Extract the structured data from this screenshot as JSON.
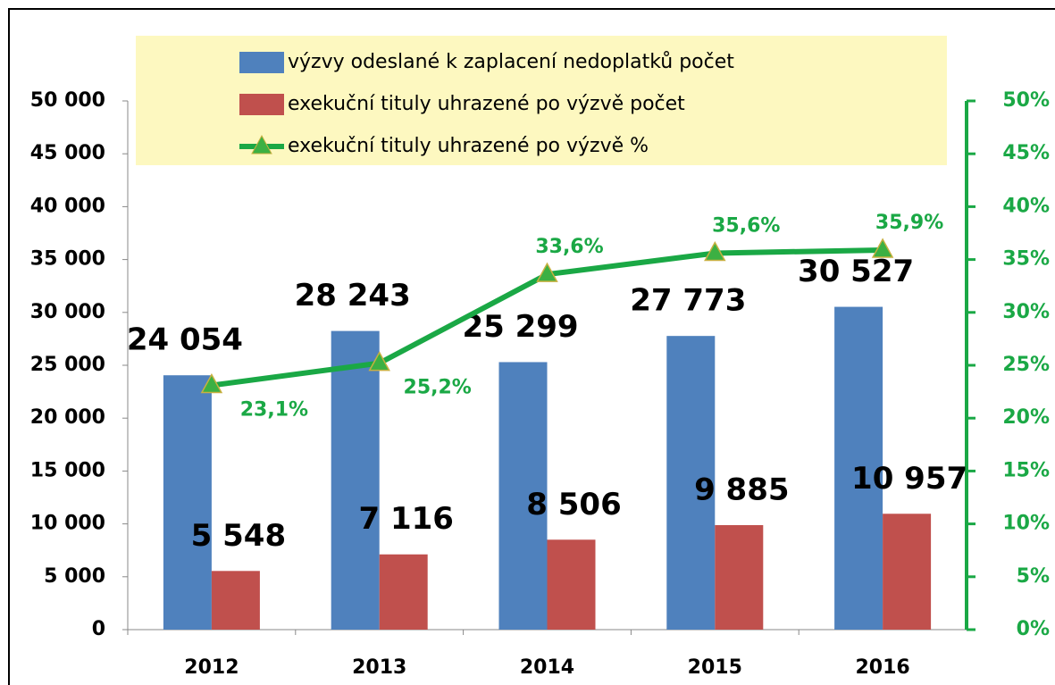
{
  "chart_data": {
    "type": "bar_line",
    "categories": [
      "2012",
      "2013",
      "2014",
      "2015",
      "2016"
    ],
    "series": [
      {
        "name": "výzvy odeslané k zaplacení nedoplatků počet",
        "color": "#4f81bd",
        "type": "bar",
        "values": [
          24054,
          28243,
          25299,
          27773,
          30527
        ],
        "value_labels": [
          "24 054",
          "28 243",
          "25 299",
          "27 773",
          "30 527"
        ]
      },
      {
        "name": "exekuční tituly uhrazené po výzvě počet",
        "color": "#c0504d",
        "type": "bar",
        "values": [
          5548,
          7116,
          8506,
          9885,
          10957
        ],
        "value_labels": [
          "5 548",
          "7 116",
          "8 506",
          "9 885",
          "10 957"
        ]
      },
      {
        "name": "exekuční tituly uhrazené po výzvě %",
        "color": "#1aa845",
        "type": "line",
        "axis": "y2",
        "values": [
          23.1,
          25.2,
          33.6,
          35.6,
          35.9
        ],
        "value_labels": [
          "23,1%",
          "25,2%",
          "33,6%",
          "35,6%",
          "35,9%"
        ]
      }
    ],
    "ylim": [
      0,
      50000
    ],
    "yticks": [
      0,
      {
        "value": 5000,
        "label": "5 000"
      },
      {
        "value": 10000,
        "label": "10 000"
      },
      {
        "value": 15000,
        "label": "15 000"
      },
      {
        "value": 20000,
        "label": "20 000"
      },
      {
        "value": 25000,
        "label": "25 000"
      },
      {
        "value": 30000,
        "label": "30 000"
      },
      {
        "value": 35000,
        "label": "35 000"
      },
      {
        "value": 40000,
        "label": "40 000"
      },
      {
        "value": 45000,
        "label": "45 000"
      },
      {
        "value": 50000,
        "label": "50 000"
      }
    ],
    "y2lim": [
      0,
      50
    ],
    "y2ticks": [
      {
        "value": 0,
        "label": "0%"
      },
      {
        "value": 5,
        "label": "5%"
      },
      {
        "value": 10,
        "label": "10%"
      },
      {
        "value": 15,
        "label": "15%"
      },
      {
        "value": 20,
        "label": "20%"
      },
      {
        "value": 25,
        "label": "25%"
      },
      {
        "value": 30,
        "label": "30%"
      },
      {
        "value": 35,
        "label": "35%"
      },
      {
        "value": 40,
        "label": "40%"
      },
      {
        "value": 45,
        "label": "45%"
      },
      {
        "value": 50,
        "label": "50%"
      }
    ],
    "legend": "top"
  }
}
